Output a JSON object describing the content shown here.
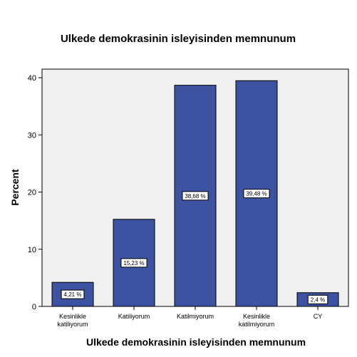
{
  "chart_data": {
    "type": "bar",
    "title": "Ulkede demokrasinin isleyisinden memnunum",
    "xlabel": "Ulkede demokrasinin isleyisinden memnunum",
    "ylabel": "Percent",
    "categories": [
      [
        "Kesinlikle",
        "katiliyorum"
      ],
      [
        "Katiliyorum"
      ],
      [
        "Katilmiyorum"
      ],
      [
        "Kesinlikle",
        "katilmiyorum"
      ],
      [
        "CY"
      ]
    ],
    "values": [
      4.21,
      15.23,
      38.68,
      39.48,
      2.4
    ],
    "data_labels": [
      "4,21 %",
      "15,23 %",
      "38,68 %",
      "39,48 %",
      "2,4 %"
    ],
    "yticks": [
      0,
      10,
      20,
      30,
      40
    ],
    "ylim": [
      0,
      41.5
    ],
    "grid": false,
    "colors": {
      "bar": "#3d52a1",
      "plot_background": "#f0f0f0"
    }
  }
}
